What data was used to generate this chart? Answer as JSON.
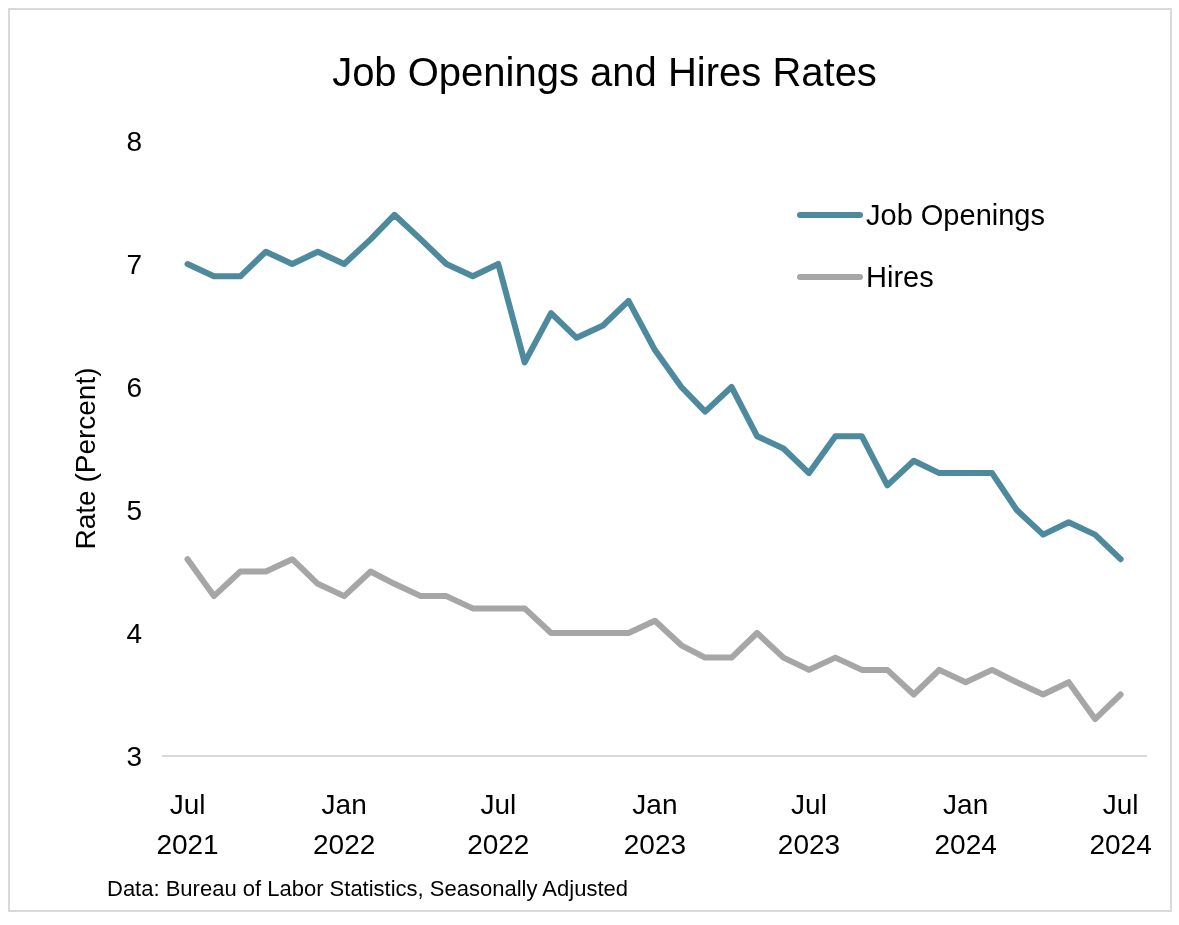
{
  "chart_data": {
    "type": "line",
    "title": "Job Openings and Hires Rates",
    "ylabel": "Rate (Percent)",
    "x": [
      "2021-07",
      "2021-08",
      "2021-09",
      "2021-10",
      "2021-11",
      "2021-12",
      "2022-01",
      "2022-02",
      "2022-03",
      "2022-04",
      "2022-05",
      "2022-06",
      "2022-07",
      "2022-08",
      "2022-09",
      "2022-10",
      "2022-11",
      "2022-12",
      "2023-01",
      "2023-02",
      "2023-03",
      "2023-04",
      "2023-05",
      "2023-06",
      "2023-07",
      "2023-08",
      "2023-09",
      "2023-10",
      "2023-11",
      "2023-12",
      "2024-01",
      "2024-02",
      "2024-03",
      "2024-04",
      "2024-05",
      "2024-06",
      "2024-07"
    ],
    "series": [
      {
        "name": "Job Openings",
        "color": "#4e8a9e",
        "values": [
          7.0,
          6.9,
          6.9,
          7.1,
          7.0,
          7.1,
          7.0,
          7.2,
          7.4,
          7.2,
          7.0,
          6.9,
          7.0,
          6.2,
          6.6,
          6.4,
          6.5,
          6.7,
          6.3,
          6.0,
          5.8,
          6.0,
          5.6,
          5.5,
          5.3,
          5.6,
          5.6,
          5.2,
          5.4,
          5.3,
          5.3,
          5.3,
          5.0,
          4.8,
          4.9,
          4.8,
          4.6
        ]
      },
      {
        "name": "Hires",
        "color": "#a5a6a5",
        "values": [
          4.6,
          4.3,
          4.5,
          4.5,
          4.6,
          4.4,
          4.3,
          4.5,
          4.4,
          4.3,
          4.3,
          4.2,
          4.2,
          4.2,
          4.0,
          4.0,
          4.0,
          4.0,
          4.1,
          3.9,
          3.8,
          3.8,
          4.0,
          3.8,
          3.7,
          3.8,
          3.7,
          3.7,
          3.5,
          3.7,
          3.6,
          3.7,
          3.6,
          3.5,
          3.6,
          3.3,
          3.5
        ]
      }
    ],
    "xlim": [
      "2021-06",
      "2024-08"
    ],
    "xticks": [
      {
        "value": "2021-07",
        "label": "Jul\n2021"
      },
      {
        "value": "2022-01",
        "label": "Jan\n2022"
      },
      {
        "value": "2022-07",
        "label": "Jul\n2022"
      },
      {
        "value": "2023-01",
        "label": "Jan\n2023"
      },
      {
        "value": "2023-07",
        "label": "Jul\n2023"
      },
      {
        "value": "2024-01",
        "label": "Jan\n2024"
      },
      {
        "value": "2024-07",
        "label": "Jul\n2024"
      }
    ],
    "ylim": [
      3,
      8
    ],
    "yticks": [
      3,
      4,
      5,
      6,
      7,
      8
    ],
    "grid": false,
    "legend": "top right",
    "line_style": "solid",
    "annotations": [
      "Data: Bureau of Labor Statistics, Seasonally Adjusted"
    ]
  }
}
